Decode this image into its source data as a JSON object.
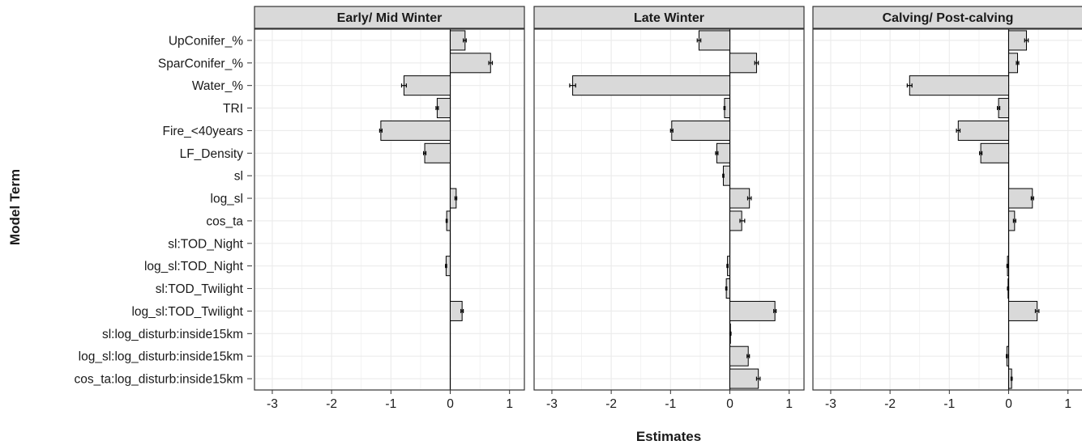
{
  "chart_data": {
    "type": "bar",
    "orientation": "horizontal",
    "xlabel": "Estimates",
    "ylabel": "Model Term",
    "xlim": [
      -3.3,
      1.25
    ],
    "xticks": [
      "-3",
      "-2",
      "-1",
      "0",
      "1"
    ],
    "grid": true,
    "bar_fill": "#d9d9d9",
    "bar_stroke": "#000000",
    "strip_fill": "#d9d9d9",
    "grid_color": "#ebebeb",
    "terms": [
      "UpConifer_%",
      "SparConifer_%",
      "Water_%",
      "TRI",
      "Fire_<40years",
      "LF_Density",
      "sl",
      "log_sl",
      "cos_ta",
      "sl:TOD_Night",
      "log_sl:TOD_Night",
      "sl:TOD_Twilight",
      "log_sl:TOD_Twilight",
      "sl:log_disturb:inside15km",
      "log_sl:log_disturb:inside15km",
      "cos_ta:log_disturb:inside15km"
    ],
    "panels": [
      {
        "title": "Early/ Mid Winter",
        "values": [
          0.25,
          0.68,
          -0.78,
          -0.22,
          -1.17,
          -0.43,
          0.0,
          0.1,
          -0.06,
          0.0,
          -0.07,
          0.0,
          0.2,
          0.0,
          0.0,
          0.0
        ],
        "err_low": [
          0.22,
          0.65,
          -0.82,
          -0.24,
          -1.19,
          -0.45,
          0.0,
          0.08,
          -0.07,
          0.0,
          -0.08,
          0.0,
          0.18,
          0.0,
          0.0,
          0.0
        ],
        "err_high": [
          0.27,
          0.71,
          -0.74,
          -0.2,
          -1.15,
          -0.41,
          0.0,
          0.11,
          -0.05,
          0.0,
          -0.06,
          0.0,
          0.22,
          0.0,
          0.0,
          0.0
        ]
      },
      {
        "title": "Late Winter",
        "values": [
          -0.52,
          0.45,
          -2.65,
          -0.09,
          -0.98,
          -0.22,
          -0.11,
          0.33,
          0.2,
          0.0,
          -0.04,
          -0.06,
          0.76,
          0.01,
          0.31,
          0.48
        ],
        "err_low": [
          -0.55,
          0.42,
          -2.7,
          -0.1,
          -1.0,
          -0.24,
          -0.12,
          0.3,
          0.17,
          0.0,
          -0.05,
          -0.07,
          0.74,
          0.0,
          0.29,
          0.45
        ],
        "err_high": [
          -0.49,
          0.48,
          -2.6,
          -0.08,
          -0.96,
          -0.2,
          -0.1,
          0.36,
          0.25,
          0.0,
          -0.03,
          -0.05,
          0.78,
          0.02,
          0.33,
          0.51
        ]
      },
      {
        "title": "Calving/ Post-calving",
        "values": [
          0.3,
          0.15,
          -1.67,
          -0.17,
          -0.85,
          -0.47,
          0.0,
          0.4,
          0.1,
          0.0,
          -0.02,
          -0.01,
          0.48,
          0.0,
          -0.03,
          0.05
        ],
        "err_low": [
          0.27,
          0.13,
          -1.71,
          -0.19,
          -0.88,
          -0.49,
          0.0,
          0.38,
          0.08,
          0.0,
          -0.03,
          -0.02,
          0.45,
          0.0,
          -0.04,
          0.04
        ],
        "err_high": [
          0.33,
          0.17,
          -1.63,
          -0.15,
          -0.82,
          -0.45,
          0.0,
          0.42,
          0.12,
          0.0,
          -0.01,
          0.0,
          0.51,
          0.0,
          -0.02,
          0.06
        ]
      }
    ]
  }
}
